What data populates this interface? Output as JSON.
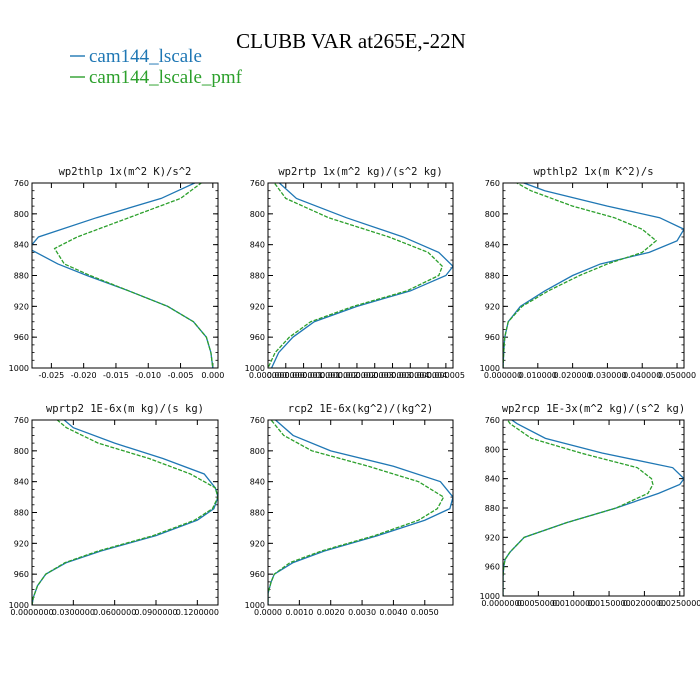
{
  "title": "CLUBB VAR at265E,-22N",
  "colors": {
    "series_a": "#1f77b4",
    "series_b": "#2ca02c"
  },
  "legend": [
    {
      "label": "cam144_lscale",
      "color": "#1f77b4",
      "style": "solid"
    },
    {
      "label": "cam144_lscale_pmf",
      "color": "#2ca02c",
      "style": "dashed"
    }
  ],
  "chart_data": [
    {
      "type": "line",
      "title": "wp2thlp  1x(m^2 K)/s^2",
      "xlim": [
        -0.028,
        0.0008
      ],
      "ylim": [
        760,
        1000
      ],
      "xticks": [
        -0.025,
        -0.02,
        -0.015,
        -0.01,
        -0.005,
        0.0
      ],
      "xtick_labels": [
        "-0.025",
        "-0.020",
        "-0.015",
        "-0.010",
        "-0.005",
        "0.000"
      ],
      "yticks": [
        760,
        800,
        840,
        880,
        920,
        960,
        1000
      ],
      "ytick_labels": [
        "760",
        "800",
        "840",
        "880",
        "920",
        "960",
        "1000"
      ],
      "y": [
        755,
        780,
        805,
        830,
        845,
        865,
        880,
        900,
        920,
        940,
        960,
        980,
        1000
      ],
      "series": [
        {
          "name": "cam144_lscale",
          "values": [
            -0.0015,
            -0.008,
            -0.018,
            -0.027,
            -0.0285,
            -0.024,
            -0.0195,
            -0.013,
            -0.007,
            -0.003,
            -0.001,
            -0.0003,
            0.0
          ]
        },
        {
          "name": "cam144_lscale_pmf",
          "values": [
            -0.001,
            -0.005,
            -0.013,
            -0.021,
            -0.0245,
            -0.023,
            -0.019,
            -0.013,
            -0.007,
            -0.003,
            -0.001,
            -0.0003,
            0.0
          ]
        }
      ]
    },
    {
      "type": "line",
      "title": "wp2rtp  1x(m^2 kg)/(s^2 kg)",
      "xlim": [
        0,
        5.2e-06
      ],
      "ylim": [
        760,
        1000
      ],
      "xticks": [
        0,
        5e-07,
        1e-06,
        1.5e-06,
        2e-06,
        2.5e-06,
        3e-06,
        3.5e-06,
        4e-06,
        4.5e-06,
        5e-06
      ],
      "xtick_labels": [
        "0.000000",
        "0.000000",
        "0.000001",
        "0.000001",
        "0.000002",
        "0.000002",
        "0.000003",
        "0.000003",
        "0.000004",
        "0.000004",
        "0.000005"
      ],
      "yticks": [
        760,
        800,
        840,
        880,
        920,
        960,
        1000
      ],
      "ytick_labels": [
        "760",
        "800",
        "840",
        "880",
        "920",
        "960",
        "1000"
      ],
      "y": [
        755,
        780,
        805,
        830,
        850,
        868,
        880,
        900,
        920,
        940,
        960,
        980,
        1000
      ],
      "series": [
        {
          "name": "cam144_lscale",
          "values": [
            2e-07,
            8e-07,
            2.2e-06,
            3.8e-06,
            4.8e-06,
            5.2e-06,
            5e-06,
            4e-06,
            2.5e-06,
            1.3e-06,
            7e-07,
            3e-07,
            1e-07
          ]
        },
        {
          "name": "cam144_lscale_pmf",
          "values": [
            1e-07,
            5e-07,
            1.7e-06,
            3.4e-06,
            4.5e-06,
            4.9e-06,
            4.8e-06,
            3.9e-06,
            2.4e-06,
            1.2e-06,
            6e-07,
            2e-07,
            0.0
          ]
        }
      ]
    },
    {
      "type": "line",
      "title": "wpthlp2  1x(m K^2)/s",
      "xlim": [
        0,
        0.052
      ],
      "ylim": [
        760,
        1000
      ],
      "xticks": [
        0,
        0.01,
        0.02,
        0.03,
        0.04,
        0.05
      ],
      "xtick_labels": [
        "0.000000",
        "0.010000",
        "0.020000",
        "0.030000",
        "0.040000",
        "0.050000"
      ],
      "yticks": [
        760,
        800,
        840,
        880,
        920,
        960,
        1000
      ],
      "ytick_labels": [
        "760",
        "800",
        "840",
        "880",
        "920",
        "960",
        "1000"
      ],
      "y": [
        755,
        770,
        790,
        805,
        820,
        835,
        850,
        865,
        880,
        900,
        920,
        940,
        960,
        980,
        1000
      ],
      "series": [
        {
          "name": "cam144_lscale",
          "values": [
            0.003,
            0.012,
            0.03,
            0.045,
            0.052,
            0.05,
            0.042,
            0.028,
            0.02,
            0.012,
            0.005,
            0.0015,
            0.0005,
            0.0002,
            0.0
          ]
        },
        {
          "name": "cam144_lscale_pmf",
          "values": [
            0.002,
            0.008,
            0.02,
            0.032,
            0.04,
            0.044,
            0.04,
            0.03,
            0.022,
            0.013,
            0.0055,
            0.0015,
            0.0005,
            0.0002,
            0.0
          ]
        }
      ]
    },
    {
      "type": "line",
      "title": "wprtp2  1E-6x(m kg)/(s kg)",
      "xlim": [
        0,
        0.135
      ],
      "ylim": [
        760,
        1000
      ],
      "xticks": [
        0,
        0.03,
        0.06,
        0.09,
        0.12
      ],
      "xtick_labels": [
        "0.0000000",
        "0.0300000",
        "0.0600000",
        "0.0900000",
        "0.1200000"
      ],
      "yticks": [
        760,
        800,
        840,
        880,
        920,
        960,
        1000
      ],
      "ytick_labels": [
        "760",
        "800",
        "840",
        "880",
        "920",
        "960",
        "1000"
      ],
      "y": [
        755,
        770,
        790,
        810,
        830,
        848,
        860,
        875,
        890,
        910,
        930,
        945,
        960,
        975,
        990,
        1000
      ],
      "series": [
        {
          "name": "cam144_lscale",
          "values": [
            0.02,
            0.03,
            0.06,
            0.095,
            0.125,
            0.133,
            0.135,
            0.132,
            0.12,
            0.09,
            0.05,
            0.025,
            0.01,
            0.004,
            0.001,
            0.0
          ]
        },
        {
          "name": "cam144_lscale_pmf",
          "values": [
            0.015,
            0.025,
            0.048,
            0.085,
            0.115,
            0.133,
            0.135,
            0.131,
            0.118,
            0.088,
            0.048,
            0.024,
            0.01,
            0.004,
            0.001,
            0.0
          ]
        }
      ]
    },
    {
      "type": "line",
      "title": "rcp2  1E-6x(kg^2)/(kg^2)",
      "xlim": [
        0,
        0.0059
      ],
      "ylim": [
        760,
        1000
      ],
      "xticks": [
        0,
        0.001,
        0.002,
        0.003,
        0.004,
        0.005
      ],
      "xtick_labels": [
        "0.0000",
        "0.0010",
        "0.0020",
        "0.0030",
        "0.0040",
        "0.0050"
      ],
      "yticks": [
        760,
        800,
        840,
        880,
        920,
        960,
        1000
      ],
      "ytick_labels": [
        "760",
        "800",
        "840",
        "880",
        "920",
        "960",
        "1000"
      ],
      "y": [
        755,
        780,
        800,
        820,
        840,
        860,
        875,
        890,
        910,
        930,
        945,
        960,
        970,
        985,
        1000
      ],
      "series": [
        {
          "name": "cam144_lscale",
          "values": [
            0.0001,
            0.0008,
            0.002,
            0.004,
            0.0055,
            0.0059,
            0.0058,
            0.005,
            0.0035,
            0.0018,
            0.0008,
            0.0002,
            0.0001,
            0.0,
            0.0
          ]
        },
        {
          "name": "cam144_lscale_pmf",
          "values": [
            0.0,
            0.0005,
            0.0014,
            0.0032,
            0.0048,
            0.0056,
            0.0054,
            0.0048,
            0.0034,
            0.0017,
            0.0007,
            0.0002,
            0.0001,
            0.0,
            0.0
          ]
        }
      ]
    },
    {
      "type": "line",
      "title": "wp2rcp  1E-3x(m^2 kg)/(s^2 kg)",
      "xlim": [
        0,
        0.0256
      ],
      "ylim": [
        760,
        1000
      ],
      "xticks": [
        0,
        0.005,
        0.01,
        0.015,
        0.02,
        0.025
      ],
      "xtick_labels": [
        "0.0000000",
        "0.0050000",
        "0.0100000",
        "0.0150000",
        "0.0200000",
        "0.0250000"
      ],
      "yticks": [
        760,
        800,
        840,
        880,
        920,
        960,
        1000
      ],
      "ytick_labels": [
        "760",
        "800",
        "840",
        "880",
        "920",
        "960",
        "1000"
      ],
      "y": [
        755,
        765,
        785,
        805,
        825,
        840,
        848,
        860,
        880,
        900,
        920,
        940,
        950,
        960,
        975,
        990,
        1000
      ],
      "series": [
        {
          "name": "cam144_lscale",
          "values": [
            0.0005,
            0.002,
            0.006,
            0.014,
            0.024,
            0.0256,
            0.025,
            0.022,
            0.016,
            0.009,
            0.003,
            0.001,
            0.0003,
            0.0001,
            0.0,
            0.0,
            0.0
          ]
        },
        {
          "name": "cam144_lscale_pmf",
          "values": [
            0.0003,
            0.001,
            0.004,
            0.011,
            0.019,
            0.021,
            0.0212,
            0.0205,
            0.016,
            0.009,
            0.003,
            0.001,
            0.0003,
            0.0001,
            0.0,
            0.0,
            0.0
          ]
        }
      ]
    }
  ]
}
